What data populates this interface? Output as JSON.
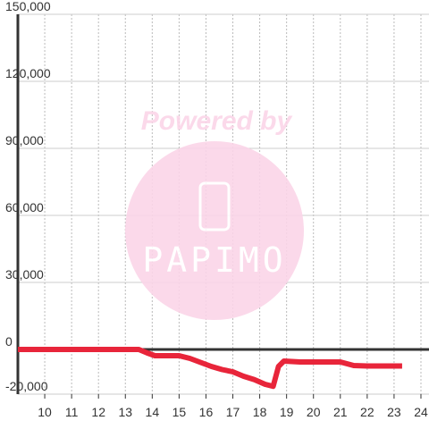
{
  "chart_data": {
    "type": "line",
    "watermark": {
      "top": "Powered by",
      "bottom": "PAPIMO"
    },
    "x": [
      9,
      13.5,
      13.8,
      14.1,
      15,
      15.4,
      15.8,
      16.2,
      16.6,
      17,
      17.4,
      17.8,
      18.2,
      18.5,
      18.7,
      18.9,
      19.5,
      21,
      21.5,
      22,
      23.3
    ],
    "series": [
      {
        "color": "#e8253a",
        "values": [
          0,
          0,
          -1500,
          -2800,
          -2800,
          -4000,
          -5800,
          -7600,
          -9000,
          -10000,
          -12000,
          -13500,
          -15600,
          -16500,
          -7600,
          -5200,
          -5600,
          -5600,
          -7200,
          -7400,
          -7400
        ]
      }
    ],
    "xlim": [
      9,
      24.3
    ],
    "ylim": [
      -20000,
      150000
    ],
    "xticks": [
      10,
      11,
      12,
      13,
      14,
      15,
      16,
      17,
      18,
      19,
      20,
      21,
      22,
      23,
      24
    ],
    "yticks": [
      {
        "value": -20000,
        "label": "-20,000"
      },
      0,
      {
        "value": 30000,
        "label": "30,000"
      },
      {
        "value": 60000,
        "label": "60,000"
      },
      {
        "value": 90000,
        "label": "90,000"
      },
      {
        "value": 120000,
        "label": "120,000"
      },
      {
        "value": 150000,
        "label": "150,000"
      }
    ],
    "grid": true
  }
}
